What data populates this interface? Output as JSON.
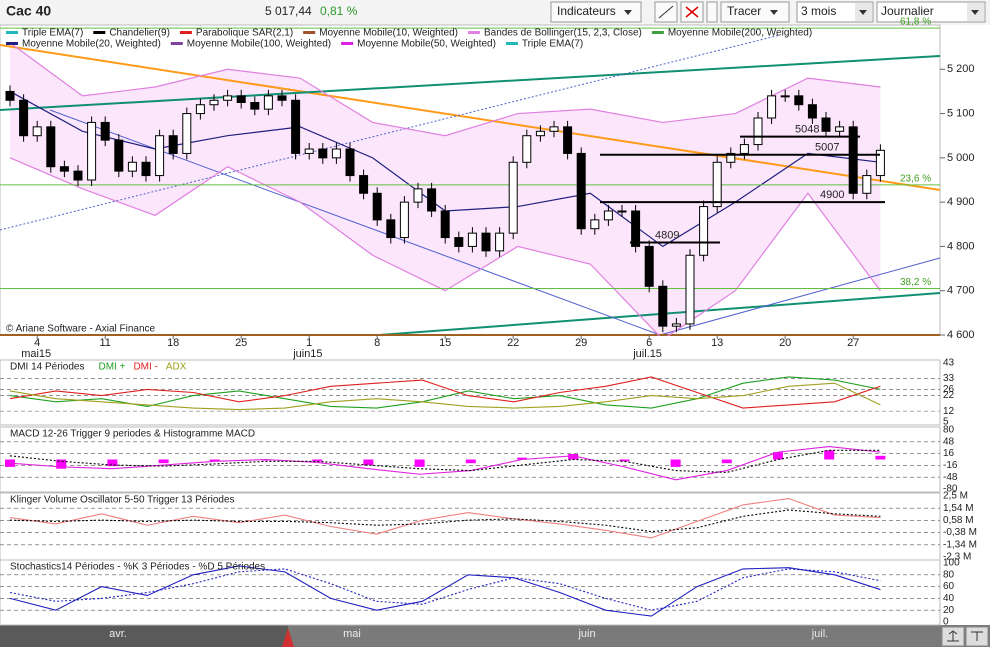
{
  "header": {
    "symbol": "Cac 40",
    "price": "5 017,44",
    "change": "0,81 %"
  },
  "toolbar": {
    "indicators": "Indicateurs",
    "draw": "Tracer",
    "period": "3 mois",
    "interval": "Journalier"
  },
  "price_chart": {
    "type": "candlestick",
    "legend": [
      {
        "name": "Triple EMA(7)",
        "color": "#20b8b8"
      },
      {
        "name": "Chandelier(9)",
        "color": "#000000"
      },
      {
        "name": "Parabolique SAR(2,1)",
        "color": "#e02020"
      },
      {
        "name": "Moyenne Mobile(10, Weighted)",
        "color": "#a0522d"
      },
      {
        "name": "Bandes de Bollinger(15, 2,3, Close)",
        "color": "#e080e0"
      },
      {
        "name": "Moyenne Mobile(200, Weighted)",
        "color": "#40a040"
      },
      {
        "name": "Moyenne Mobile(20, Weighted)",
        "color": "#202080"
      },
      {
        "name": "Moyenne Mobile(100, Weighted)",
        "color": "#8040a0"
      },
      {
        "name": "Moyenne Mobile(50, Weighted)",
        "color": "#e020e0"
      },
      {
        "name": "Triple EMA(7)",
        "color": "#20b8b8"
      }
    ],
    "copyright": "© Ariane Software - Axial Finance",
    "ylim": [
      4600,
      5300
    ],
    "yticks": [
      {
        "value": 5200,
        "label": "5 200"
      },
      {
        "value": 5100,
        "label": "5 100"
      },
      {
        "value": 5000,
        "label": "5 000"
      },
      {
        "value": 4900,
        "label": "4 900"
      },
      {
        "value": 4800,
        "label": "4 800"
      },
      {
        "value": 4700,
        "label": "4 700"
      },
      {
        "value": 4600,
        "label": "4 600"
      }
    ],
    "open": [
      5150,
      5130,
      5050,
      5070,
      4980,
      4970,
      4950,
      5080,
      5040,
      4970,
      4990,
      4960,
      5050,
      5010,
      5100,
      5120,
      5130,
      5140,
      5125,
      5110,
      5140,
      5130,
      5010,
      5020,
      5000,
      5020,
      4960,
      4920,
      4860,
      4820,
      4900,
      4930,
      4880,
      4820,
      4800,
      4830,
      4790,
      4830,
      4990,
      5050,
      5060,
      5070,
      5010,
      4840,
      4860,
      4880,
      4880,
      4800,
      4710,
      4620,
      4625,
      4780,
      4890,
      4990,
      5010,
      5030,
      5090,
      5140,
      5140,
      5120,
      5090,
      5060,
      5070,
      4920,
      4960
    ],
    "close": [
      5130,
      5050,
      5070,
      4980,
      4970,
      4950,
      5080,
      5040,
      4970,
      4990,
      4960,
      5050,
      5010,
      5100,
      5120,
      5130,
      5140,
      5125,
      5110,
      5140,
      5130,
      5010,
      5020,
      5000,
      5020,
      4960,
      4920,
      4860,
      4820,
      4900,
      4930,
      4880,
      4820,
      4800,
      4830,
      4790,
      4830,
      4990,
      5050,
      5060,
      5070,
      5010,
      4840,
      4860,
      4880,
      4880,
      4800,
      4710,
      4620,
      4625,
      4780,
      4890,
      4990,
      5010,
      5030,
      5090,
      5140,
      5140,
      5120,
      5090,
      5060,
      5070,
      4920,
      4960,
      5017
    ],
    "overlays": [
      {
        "name": "Bollinger upper",
        "color": "#e080e0",
        "values": [
          5260,
          5140,
          5160,
          5200,
          5180,
          5080,
          5050,
          5100,
          5110,
          5080,
          5100,
          5180,
          5160
        ]
      },
      {
        "name": "Bollinger lower",
        "color": "#e080e0",
        "values": [
          5000,
          4930,
          4870,
          4980,
          4900,
          4780,
          4700,
          4800,
          4760,
          4590,
          4700,
          4920,
          4700
        ]
      },
      {
        "name": "Moyenne Mobile(20, Weighted)",
        "color": "#202080",
        "values": [
          5150,
          5060,
          5020,
          5050,
          5070,
          5000,
          4880,
          4890,
          4920,
          4800,
          4900,
          5010,
          4990
        ]
      }
    ],
    "levels": [
      5048,
      5007,
      4900,
      4809
    ],
    "fib": [
      {
        "label": "61,8 %",
        "price": 5293
      },
      {
        "label": "23,6 %",
        "price": 4939
      },
      {
        "label": "38,2 %",
        "price": 4705
      }
    ],
    "date_ticks": [
      "4",
      "11",
      "18",
      "25",
      "1",
      "8",
      "15",
      "22",
      "29",
      "6",
      "13",
      "20",
      "27"
    ],
    "months": [
      {
        "label": "mai15",
        "at": 0
      },
      {
        "label": "juin15",
        "at": 4
      },
      {
        "label": "juil.15",
        "at": 9
      }
    ]
  },
  "panels": [
    {
      "title": "DMI 14 Périodes",
      "ylim": [
        5,
        43
      ],
      "yticks": [
        43,
        33,
        26,
        22,
        12,
        5
      ],
      "series": [
        {
          "name": "DMI +",
          "color": "#20a020",
          "values": [
            22,
            18,
            20,
            15,
            22,
            25,
            20,
            15,
            14,
            18,
            25,
            20,
            22,
            16,
            14,
            20,
            30,
            34,
            32,
            26
          ]
        },
        {
          "name": "DMI -",
          "color": "#e02020",
          "values": [
            20,
            25,
            22,
            26,
            24,
            18,
            22,
            28,
            30,
            32,
            22,
            18,
            24,
            28,
            34,
            24,
            14,
            16,
            18,
            28
          ]
        },
        {
          "name": "ADX",
          "color": "#a0a020",
          "values": [
            25,
            20,
            18,
            16,
            14,
            13,
            14,
            18,
            20,
            18,
            15,
            14,
            15,
            18,
            22,
            20,
            22,
            28,
            30,
            16
          ]
        }
      ]
    },
    {
      "title": "MACD 12-26  Trigger 9 periodes & Histogramme MACD",
      "ylim": [
        -80,
        80
      ],
      "yticks": [
        80,
        48,
        16,
        -16,
        -48,
        -80
      ],
      "histogram": {
        "color": "#ff00ff",
        "values": [
          -20,
          -25,
          -18,
          -10,
          -5,
          0,
          -5,
          -15,
          -20,
          -10,
          5,
          15,
          -5,
          -20,
          -10,
          20,
          25,
          10
        ]
      },
      "series": [
        {
          "color": "#e020e0",
          "values": [
            -10,
            -20,
            -25,
            -15,
            -5,
            0,
            -8,
            -25,
            -40,
            -30,
            0,
            10,
            -20,
            -55,
            -30,
            20,
            35,
            20
          ]
        },
        {
          "color": "#000000",
          "dash": true,
          "values": [
            10,
            -5,
            -15,
            -18,
            -12,
            -5,
            -5,
            -15,
            -25,
            -30,
            -15,
            0,
            -5,
            -30,
            -35,
            0,
            25,
            25
          ]
        }
      ]
    },
    {
      "title": "Klinger Volume Oscillator 5-50  Trigger 13 Périodes",
      "ylim": [
        -2.3,
        2.5
      ],
      "yticks": [
        {
          "value": 2.5,
          "label": "2,5 M"
        },
        {
          "value": 1.54,
          "label": "1,54 M"
        },
        {
          "value": 0.58,
          "label": "0,58 M"
        },
        {
          "value": -0.38,
          "label": "-0,38 M"
        },
        {
          "value": -1.34,
          "label": "-1,34 M"
        },
        {
          "value": -2.3,
          "label": "-2,3 M"
        }
      ],
      "series": [
        {
          "color": "#f08080",
          "values": [
            0.8,
            0.3,
            1.1,
            0.2,
            0.9,
            0.4,
            1.0,
            0.1,
            -0.5,
            0.6,
            1.2,
            0.7,
            0.3,
            -0.2,
            -0.8,
            0.5,
            1.8,
            2.3,
            1.0,
            0.8
          ]
        },
        {
          "color": "#000000",
          "dash": true,
          "values": [
            0.6,
            0.5,
            0.6,
            0.5,
            0.6,
            0.5,
            0.5,
            0.4,
            0.2,
            0.3,
            0.6,
            0.7,
            0.5,
            0.2,
            -0.3,
            0.0,
            0.9,
            1.4,
            1.1,
            0.9
          ]
        }
      ]
    },
    {
      "title": "Stochastics14 Périodes  -  %K 3 Périodes  -  %D 5 Périodes",
      "ylim": [
        0,
        100
      ],
      "yticks": [
        100,
        80,
        60,
        40,
        20,
        0
      ],
      "series": [
        {
          "color": "#2020c0",
          "values": [
            40,
            20,
            60,
            45,
            80,
            95,
            85,
            40,
            20,
            35,
            80,
            75,
            50,
            20,
            10,
            60,
            90,
            92,
            80,
            55
          ]
        },
        {
          "color": "#2020c0",
          "dash": true,
          "values": [
            50,
            35,
            40,
            50,
            65,
            85,
            90,
            65,
            35,
            30,
            55,
            75,
            65,
            40,
            20,
            35,
            75,
            90,
            85,
            70
          ]
        }
      ]
    }
  ],
  "navigator": {
    "months": [
      "avr.",
      "mai",
      "juin",
      "juil."
    ]
  }
}
